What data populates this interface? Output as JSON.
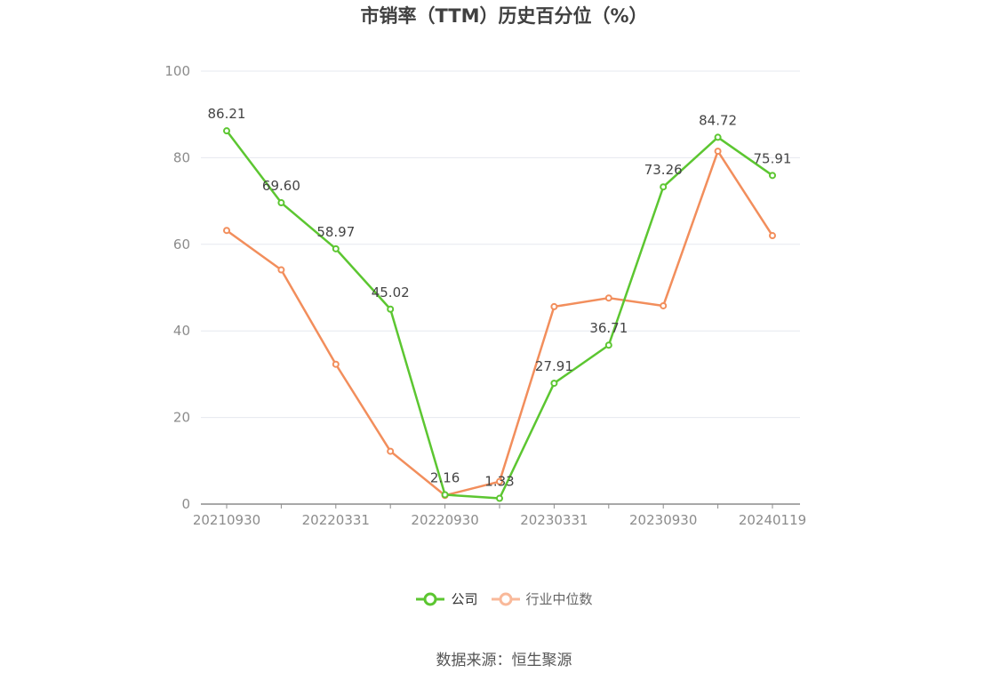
{
  "chart_data": {
    "type": "line",
    "title": "市销率（TTM）历史百分位（%）",
    "x": [
      "20210930",
      "",
      "20220331",
      "",
      "20220930",
      "",
      "20230331",
      "",
      "20230930",
      "",
      "20240119"
    ],
    "tick_labels": [
      "20210930",
      "20220331",
      "20220930",
      "20230331",
      "20230930",
      "20240119"
    ],
    "y_ticks": [
      "0",
      "20",
      "40",
      "60",
      "80",
      "100"
    ],
    "ylim": [
      0,
      100
    ],
    "grid": true,
    "legend_position": "bottom",
    "series": [
      {
        "name": "公司",
        "color": "#5cc631",
        "values": [
          86.21,
          69.6,
          58.97,
          45.02,
          2.16,
          1.33,
          27.91,
          36.71,
          73.26,
          84.72,
          75.91
        ],
        "labels": [
          "86.21",
          "69.60",
          "58.97",
          "45.02",
          "2.16",
          "1.33",
          "27.91",
          "36.71",
          "73.26",
          "84.72",
          "75.91"
        ]
      },
      {
        "name": "行业中位数",
        "color": "#f28e5c",
        "values": [
          63.2,
          54.1,
          32.3,
          12.2,
          2.0,
          5.2,
          45.6,
          47.6,
          45.8,
          81.5,
          62.0
        ]
      }
    ]
  },
  "legend": {
    "company": "公司",
    "industry": "行业中位数"
  },
  "source": "数据来源：恒生聚源"
}
